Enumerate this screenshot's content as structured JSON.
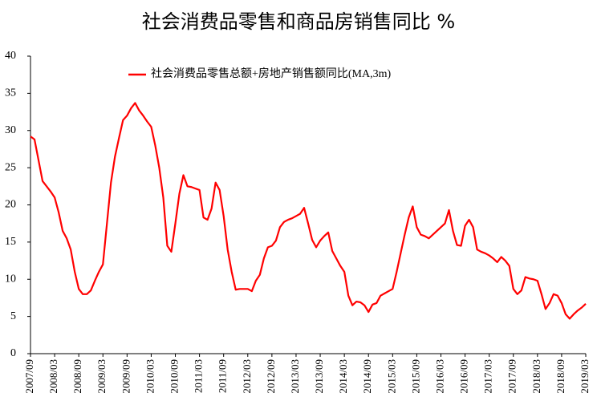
{
  "chart_data": {
    "type": "line",
    "title": "社会消费品零售和商品房销售同比 %",
    "categories": [
      "2007/09",
      null,
      null,
      null,
      null,
      null,
      "2008/03",
      null,
      null,
      null,
      null,
      null,
      "2008/09",
      null,
      null,
      null,
      null,
      null,
      "2009/03",
      null,
      null,
      null,
      null,
      null,
      "2009/09",
      null,
      null,
      null,
      null,
      null,
      "2010/03",
      null,
      null,
      null,
      null,
      null,
      "2010/09",
      null,
      null,
      null,
      null,
      null,
      "2011/03",
      null,
      null,
      null,
      null,
      null,
      "2011/09",
      null,
      null,
      null,
      null,
      null,
      "2012/03",
      null,
      null,
      null,
      null,
      null,
      "2012/09",
      null,
      null,
      null,
      null,
      null,
      "2013/03",
      null,
      null,
      null,
      null,
      null,
      "2013/09",
      null,
      null,
      null,
      null,
      null,
      "2014/03",
      null,
      null,
      null,
      null,
      null,
      "2014/09",
      null,
      null,
      null,
      null,
      null,
      "2015/03",
      null,
      null,
      null,
      null,
      null,
      "2015/09",
      null,
      null,
      null,
      null,
      null,
      "2016/03",
      null,
      null,
      null,
      null,
      null,
      "2016/09",
      null,
      null,
      null,
      null,
      null,
      "2017/03",
      null,
      null,
      null,
      null,
      null,
      "2017/09",
      null,
      null,
      null,
      null,
      null,
      "2018/03",
      null,
      null,
      null,
      null,
      null,
      "2018/09",
      null,
      null,
      null,
      null,
      null,
      "2019/03"
    ],
    "series": [
      {
        "name": "社会消费品零售总额+房地产销售额同比(MA,3m)",
        "color": "#ff0000",
        "values": [
          29.2,
          28.8,
          26,
          23.2,
          22.5,
          21.8,
          21,
          19,
          16.5,
          15.5,
          14,
          11,
          8.7,
          8,
          8,
          8.5,
          9.8,
          11,
          12,
          17.5,
          23,
          26.5,
          29,
          31.4,
          32,
          33,
          33.7,
          32.7,
          32,
          31.2,
          30.5,
          28,
          25,
          21,
          14.5,
          13.7,
          17.5,
          21.5,
          24,
          22.5,
          22.4,
          22.2,
          22,
          18.3,
          18,
          19.5,
          23,
          22,
          18.5,
          14,
          11,
          8.6,
          8.7,
          8.7,
          8.7,
          8.4,
          9.8,
          10.6,
          12.8,
          14.3,
          14.5,
          15.2,
          17,
          17.7,
          18,
          18.2,
          18.5,
          18.8,
          19.6,
          17.5,
          15.3,
          14.3,
          15.2,
          15.8,
          16.3,
          13.8,
          12.8,
          11.8,
          11,
          7.8,
          6.5,
          7,
          6.9,
          6.5,
          5.6,
          6.6,
          6.8,
          7.8,
          8.1,
          8.4,
          8.7,
          11,
          13.5,
          16,
          18.3,
          19.8,
          17,
          16,
          15.8,
          15.5,
          16,
          16.5,
          17,
          17.5,
          19.3,
          16.5,
          14.6,
          14.5,
          17.2,
          18,
          17,
          14,
          13.7,
          13.5,
          13.2,
          12.8,
          12.3,
          13,
          12.5,
          11.8,
          8.7,
          8,
          8.5,
          10.3,
          10.1,
          10,
          9.8,
          8,
          6,
          6.8,
          8,
          7.8,
          6.8,
          5.3,
          4.7,
          5.3,
          5.8,
          6.2,
          6.7
        ]
      }
    ],
    "ylim": [
      0,
      40
    ],
    "yticks": [
      0,
      5,
      10,
      15,
      20,
      25,
      30,
      35,
      40
    ],
    "grid": false,
    "legend": "top"
  }
}
